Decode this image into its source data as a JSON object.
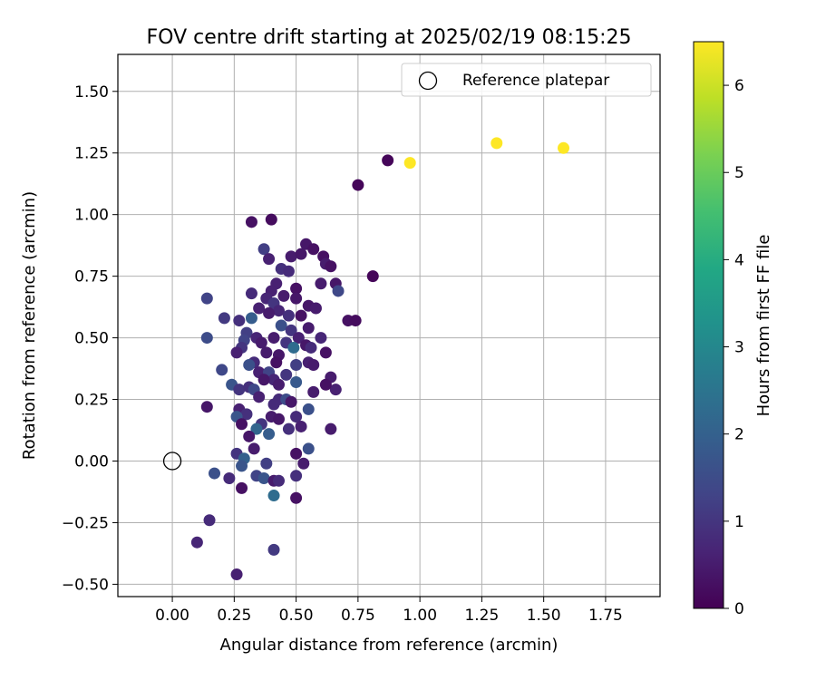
{
  "chart_data": {
    "type": "scatter",
    "title": "FOV centre drift starting at 2025/02/19 08:15:25",
    "xlabel": "Angular distance from reference (arcmin)",
    "ylabel": "Rotation from reference (arcmin)",
    "xlim": [
      -0.22,
      1.97
    ],
    "ylim": [
      -0.55,
      1.65
    ],
    "xticks": [
      "0.00",
      "0.25",
      "0.50",
      "0.75",
      "1.00",
      "1.25",
      "1.50",
      "1.75"
    ],
    "xtick_values": [
      0,
      0.25,
      0.5,
      0.75,
      1.0,
      1.25,
      1.5,
      1.75
    ],
    "yticks": [
      "−0.50",
      "−0.25",
      "0.00",
      "0.25",
      "0.50",
      "0.75",
      "1.00",
      "1.25",
      "1.50"
    ],
    "ytick_values": [
      -0.5,
      -0.25,
      0,
      0.25,
      0.5,
      0.75,
      1.0,
      1.25,
      1.5
    ],
    "grid": true,
    "legend": {
      "position": "top-right",
      "entries": [
        "Reference platepar"
      ]
    },
    "reference_point": {
      "name": "Reference platepar",
      "x": 0.0,
      "y": 0.0,
      "marker": "open-circle"
    },
    "colorbar": {
      "label": "Hours from first FF file",
      "colormap": "viridis",
      "range": [
        0,
        6.5
      ],
      "ticks": [
        "0",
        "1",
        "2",
        "3",
        "4",
        "5",
        "6"
      ],
      "tick_values": [
        0,
        1,
        2,
        3,
        4,
        5,
        6
      ]
    },
    "points": [
      {
        "x": 0.96,
        "y": 1.21,
        "c": 6.5
      },
      {
        "x": 1.31,
        "y": 1.29,
        "c": 6.5
      },
      {
        "x": 1.58,
        "y": 1.27,
        "c": 6.5
      },
      {
        "x": 0.87,
        "y": 1.22,
        "c": 0.1
      },
      {
        "x": 0.75,
        "y": 1.12,
        "c": 0.1
      },
      {
        "x": 0.81,
        "y": 0.75,
        "c": 0.1
      },
      {
        "x": 0.4,
        "y": 0.98,
        "c": 0.2
      },
      {
        "x": 0.32,
        "y": 0.97,
        "c": 0.3
      },
      {
        "x": 0.54,
        "y": 0.88,
        "c": 0.4
      },
      {
        "x": 0.57,
        "y": 0.86,
        "c": 0.3
      },
      {
        "x": 0.37,
        "y": 0.86,
        "c": 1.2
      },
      {
        "x": 0.61,
        "y": 0.83,
        "c": 0.3
      },
      {
        "x": 0.48,
        "y": 0.83,
        "c": 0.5
      },
      {
        "x": 0.52,
        "y": 0.84,
        "c": 0.4
      },
      {
        "x": 0.39,
        "y": 0.82,
        "c": 0.6
      },
      {
        "x": 0.62,
        "y": 0.8,
        "c": 0.5
      },
      {
        "x": 0.64,
        "y": 0.79,
        "c": 0.3
      },
      {
        "x": 0.44,
        "y": 0.78,
        "c": 0.9
      },
      {
        "x": 0.47,
        "y": 0.77,
        "c": 0.8
      },
      {
        "x": 0.42,
        "y": 0.72,
        "c": 0.6
      },
      {
        "x": 0.6,
        "y": 0.72,
        "c": 0.5
      },
      {
        "x": 0.66,
        "y": 0.72,
        "c": 0.4
      },
      {
        "x": 0.32,
        "y": 0.68,
        "c": 0.8
      },
      {
        "x": 0.4,
        "y": 0.69,
        "c": 0.6
      },
      {
        "x": 0.5,
        "y": 0.7,
        "c": 0.3
      },
      {
        "x": 0.67,
        "y": 0.69,
        "c": 1.4
      },
      {
        "x": 0.14,
        "y": 0.66,
        "c": 1.3
      },
      {
        "x": 0.38,
        "y": 0.66,
        "c": 0.7
      },
      {
        "x": 0.45,
        "y": 0.67,
        "c": 0.5
      },
      {
        "x": 0.5,
        "y": 0.66,
        "c": 0.4
      },
      {
        "x": 0.41,
        "y": 0.64,
        "c": 1.0
      },
      {
        "x": 0.55,
        "y": 0.63,
        "c": 0.4
      },
      {
        "x": 0.58,
        "y": 0.62,
        "c": 0.5
      },
      {
        "x": 0.35,
        "y": 0.62,
        "c": 0.6
      },
      {
        "x": 0.43,
        "y": 0.61,
        "c": 0.7
      },
      {
        "x": 0.39,
        "y": 0.6,
        "c": 0.5
      },
      {
        "x": 0.47,
        "y": 0.59,
        "c": 0.9
      },
      {
        "x": 0.52,
        "y": 0.59,
        "c": 0.3
      },
      {
        "x": 0.21,
        "y": 0.58,
        "c": 1.1
      },
      {
        "x": 0.32,
        "y": 0.58,
        "c": 1.9
      },
      {
        "x": 0.27,
        "y": 0.57,
        "c": 0.9
      },
      {
        "x": 0.71,
        "y": 0.57,
        "c": 0.3
      },
      {
        "x": 0.74,
        "y": 0.57,
        "c": 0.2
      },
      {
        "x": 0.44,
        "y": 0.55,
        "c": 1.6
      },
      {
        "x": 0.48,
        "y": 0.53,
        "c": 1.0
      },
      {
        "x": 0.55,
        "y": 0.54,
        "c": 0.5
      },
      {
        "x": 0.3,
        "y": 0.52,
        "c": 1.2
      },
      {
        "x": 0.34,
        "y": 0.5,
        "c": 0.7
      },
      {
        "x": 0.14,
        "y": 0.5,
        "c": 1.5
      },
      {
        "x": 0.41,
        "y": 0.5,
        "c": 0.5
      },
      {
        "x": 0.51,
        "y": 0.5,
        "c": 0.6
      },
      {
        "x": 0.6,
        "y": 0.5,
        "c": 0.7
      },
      {
        "x": 0.29,
        "y": 0.49,
        "c": 1.3
      },
      {
        "x": 0.36,
        "y": 0.48,
        "c": 0.5
      },
      {
        "x": 0.46,
        "y": 0.48,
        "c": 1.0
      },
      {
        "x": 0.54,
        "y": 0.47,
        "c": 0.4
      },
      {
        "x": 0.56,
        "y": 0.46,
        "c": 0.8
      },
      {
        "x": 0.49,
        "y": 0.46,
        "c": 2.3
      },
      {
        "x": 0.28,
        "y": 0.46,
        "c": 1.0
      },
      {
        "x": 0.38,
        "y": 0.44,
        "c": 0.5
      },
      {
        "x": 0.43,
        "y": 0.43,
        "c": 0.4
      },
      {
        "x": 0.26,
        "y": 0.44,
        "c": 0.6
      },
      {
        "x": 0.62,
        "y": 0.44,
        "c": 0.3
      },
      {
        "x": 0.33,
        "y": 0.4,
        "c": 0.8
      },
      {
        "x": 0.31,
        "y": 0.39,
        "c": 1.6
      },
      {
        "x": 0.42,
        "y": 0.4,
        "c": 0.3
      },
      {
        "x": 0.55,
        "y": 0.4,
        "c": 0.6
      },
      {
        "x": 0.57,
        "y": 0.39,
        "c": 0.5
      },
      {
        "x": 0.5,
        "y": 0.39,
        "c": 1.2
      },
      {
        "x": 0.2,
        "y": 0.37,
        "c": 1.4
      },
      {
        "x": 0.35,
        "y": 0.36,
        "c": 0.6
      },
      {
        "x": 0.39,
        "y": 0.36,
        "c": 1.3
      },
      {
        "x": 0.46,
        "y": 0.35,
        "c": 1.0
      },
      {
        "x": 0.41,
        "y": 0.33,
        "c": 0.7
      },
      {
        "x": 0.5,
        "y": 0.32,
        "c": 1.8
      },
      {
        "x": 0.64,
        "y": 0.34,
        "c": 0.5
      },
      {
        "x": 0.37,
        "y": 0.33,
        "c": 0.4
      },
      {
        "x": 0.43,
        "y": 0.31,
        "c": 0.5
      },
      {
        "x": 0.24,
        "y": 0.31,
        "c": 1.7
      },
      {
        "x": 0.27,
        "y": 0.29,
        "c": 1.0
      },
      {
        "x": 0.31,
        "y": 0.3,
        "c": 0.9
      },
      {
        "x": 0.33,
        "y": 0.29,
        "c": 1.4
      },
      {
        "x": 0.57,
        "y": 0.28,
        "c": 0.5
      },
      {
        "x": 0.66,
        "y": 0.29,
        "c": 0.6
      },
      {
        "x": 0.62,
        "y": 0.31,
        "c": 0.3
      },
      {
        "x": 0.35,
        "y": 0.26,
        "c": 0.6
      },
      {
        "x": 0.43,
        "y": 0.25,
        "c": 0.8
      },
      {
        "x": 0.46,
        "y": 0.25,
        "c": 1.5
      },
      {
        "x": 0.48,
        "y": 0.24,
        "c": 0.4
      },
      {
        "x": 0.14,
        "y": 0.22,
        "c": 0.4
      },
      {
        "x": 0.41,
        "y": 0.23,
        "c": 0.8
      },
      {
        "x": 0.55,
        "y": 0.21,
        "c": 1.6
      },
      {
        "x": 0.27,
        "y": 0.21,
        "c": 0.6
      },
      {
        "x": 0.3,
        "y": 0.19,
        "c": 0.9
      },
      {
        "x": 0.26,
        "y": 0.18,
        "c": 1.7
      },
      {
        "x": 0.4,
        "y": 0.18,
        "c": 0.5
      },
      {
        "x": 0.5,
        "y": 0.18,
        "c": 0.8
      },
      {
        "x": 0.43,
        "y": 0.17,
        "c": 0.4
      },
      {
        "x": 0.28,
        "y": 0.15,
        "c": 0.3
      },
      {
        "x": 0.36,
        "y": 0.15,
        "c": 1.0
      },
      {
        "x": 0.34,
        "y": 0.13,
        "c": 2.1
      },
      {
        "x": 0.47,
        "y": 0.13,
        "c": 0.9
      },
      {
        "x": 0.52,
        "y": 0.14,
        "c": 0.6
      },
      {
        "x": 0.64,
        "y": 0.13,
        "c": 0.5
      },
      {
        "x": 0.39,
        "y": 0.11,
        "c": 1.9
      },
      {
        "x": 0.31,
        "y": 0.1,
        "c": 0.4
      },
      {
        "x": 0.33,
        "y": 0.05,
        "c": 0.5
      },
      {
        "x": 0.5,
        "y": 0.03,
        "c": 0.3
      },
      {
        "x": 0.55,
        "y": 0.05,
        "c": 1.6
      },
      {
        "x": 0.26,
        "y": 0.03,
        "c": 1.0
      },
      {
        "x": 0.29,
        "y": 0.01,
        "c": 2.0
      },
      {
        "x": 0.38,
        "y": -0.01,
        "c": 1.2
      },
      {
        "x": 0.53,
        "y": -0.01,
        "c": 0.5
      },
      {
        "x": 0.28,
        "y": -0.02,
        "c": 1.7
      },
      {
        "x": 0.17,
        "y": -0.05,
        "c": 1.6
      },
      {
        "x": 0.34,
        "y": -0.06,
        "c": 1.3
      },
      {
        "x": 0.37,
        "y": -0.07,
        "c": 1.7
      },
      {
        "x": 0.23,
        "y": -0.07,
        "c": 0.8
      },
      {
        "x": 0.5,
        "y": -0.06,
        "c": 0.9
      },
      {
        "x": 0.41,
        "y": -0.08,
        "c": 0.5
      },
      {
        "x": 0.43,
        "y": -0.08,
        "c": 0.8
      },
      {
        "x": 0.28,
        "y": -0.11,
        "c": 0.3
      },
      {
        "x": 0.41,
        "y": -0.14,
        "c": 2.3
      },
      {
        "x": 0.5,
        "y": -0.15,
        "c": 0.3
      },
      {
        "x": 0.15,
        "y": -0.24,
        "c": 0.8
      },
      {
        "x": 0.1,
        "y": -0.33,
        "c": 0.7
      },
      {
        "x": 0.41,
        "y": -0.36,
        "c": 1.1
      },
      {
        "x": 0.26,
        "y": -0.46,
        "c": 0.6
      }
    ]
  }
}
